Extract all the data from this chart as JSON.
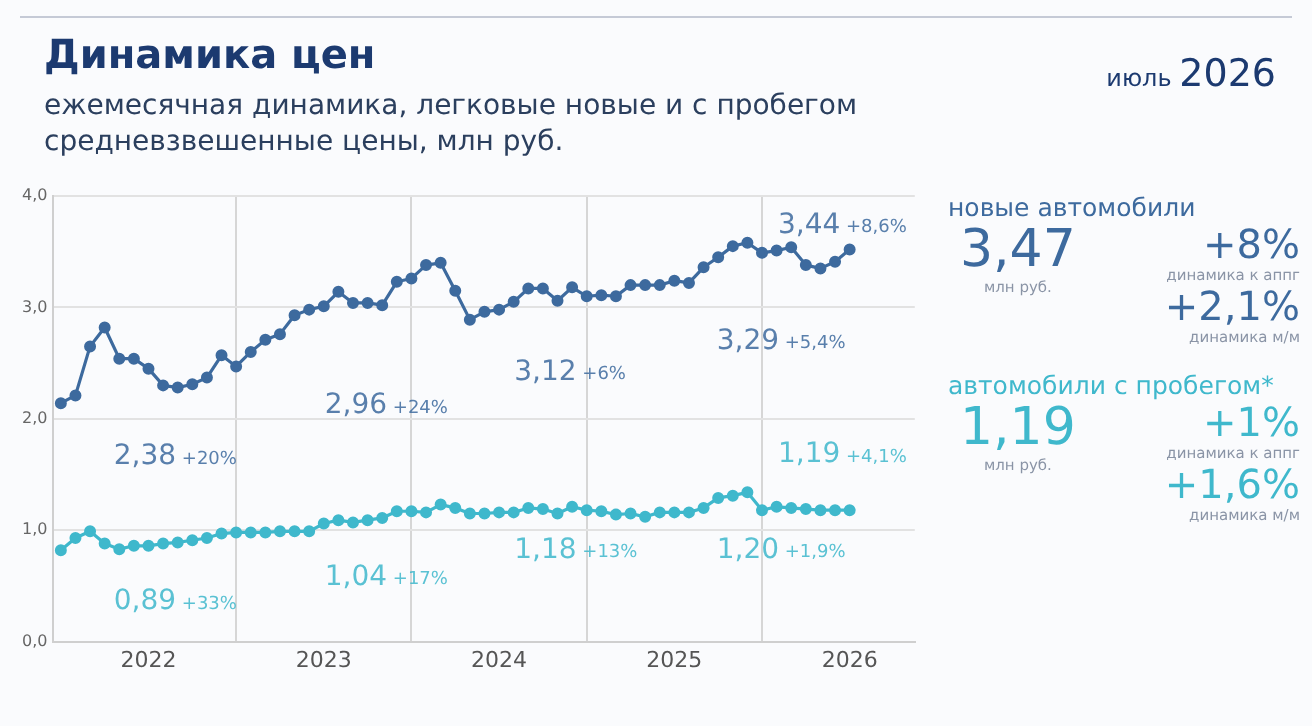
{
  "chart_data": {
    "type": "line",
    "title": "Динамика цен",
    "subtitle": "ежемесячная динамика, легковые новые и с пробегом\nсредневзвешенные цены, млн руб.",
    "x": [
      "2022-01",
      "2022-02",
      "2022-03",
      "2022-04",
      "2022-05",
      "2022-06",
      "2022-07",
      "2022-08",
      "2022-09",
      "2022-10",
      "2022-11",
      "2022-12",
      "2023-01",
      "2023-02",
      "2023-03",
      "2023-04",
      "2023-05",
      "2023-06",
      "2023-07",
      "2023-08",
      "2023-09",
      "2023-10",
      "2023-11",
      "2023-12",
      "2024-01",
      "2024-02",
      "2024-03",
      "2024-04",
      "2024-05",
      "2024-06",
      "2024-07",
      "2024-08",
      "2024-09",
      "2024-10",
      "2024-11",
      "2024-12",
      "2025-01",
      "2025-02",
      "2025-03",
      "2025-04",
      "2025-05",
      "2025-06",
      "2025-07",
      "2025-08",
      "2025-09",
      "2025-10",
      "2025-11",
      "2025-12",
      "2026-01",
      "2026-02",
      "2026-03",
      "2026-04",
      "2026-05",
      "2026-06",
      "2026-07"
    ],
    "series": [
      {
        "name": "новые автомобили",
        "color": "#3d6a9e",
        "values": [
          2.14,
          2.21,
          2.65,
          2.82,
          2.54,
          2.54,
          2.45,
          2.3,
          2.28,
          2.31,
          2.37,
          2.57,
          2.47,
          2.6,
          2.71,
          2.76,
          2.93,
          2.98,
          3.01,
          3.14,
          3.04,
          3.04,
          3.02,
          3.23,
          3.26,
          3.38,
          3.4,
          3.15,
          2.89,
          2.96,
          2.98,
          3.05,
          3.17,
          3.17,
          3.06,
          3.18,
          3.1,
          3.11,
          3.1,
          3.2,
          3.2,
          3.2,
          3.24,
          3.22,
          3.36,
          3.45,
          3.55,
          3.58,
          3.49,
          3.51,
          3.54,
          3.38,
          3.35,
          3.41,
          3.52
        ]
      },
      {
        "name": "автомобили с пробегом*",
        "color": "#3fb8cc",
        "values": [
          0.82,
          0.93,
          0.99,
          0.88,
          0.83,
          0.86,
          0.86,
          0.88,
          0.89,
          0.91,
          0.93,
          0.97,
          0.98,
          0.98,
          0.98,
          0.99,
          0.99,
          0.99,
          1.06,
          1.09,
          1.07,
          1.09,
          1.11,
          1.17,
          1.17,
          1.16,
          1.23,
          1.2,
          1.15,
          1.15,
          1.16,
          1.16,
          1.2,
          1.19,
          1.15,
          1.21,
          1.18,
          1.17,
          1.14,
          1.15,
          1.12,
          1.16,
          1.16,
          1.16,
          1.2,
          1.29,
          1.31,
          1.34,
          1.18,
          1.21,
          1.2,
          1.19,
          1.18,
          1.18,
          1.18
        ]
      }
    ],
    "xlim": [
      "2021-12-16",
      "2026-11-15"
    ],
    "xticks": [
      {
        "value": "2022-07-01",
        "label": "2022"
      },
      {
        "value": "2023-01-01",
        "label": null
      },
      {
        "value": "2023-07-01",
        "label": "2023"
      },
      {
        "value": "2024-01-01",
        "label": null
      },
      {
        "value": "2024-07-01",
        "label": "2024"
      },
      {
        "value": "2025-01-01",
        "label": null
      },
      {
        "value": "2025-07-01",
        "label": "2025"
      },
      {
        "value": "2026-01-01",
        "label": null
      },
      {
        "value": "2026-07-01",
        "label": "2026"
      }
    ],
    "ylim": [
      0,
      4
    ],
    "yticks": [
      {
        "value": 0,
        "label": "0,0"
      },
      {
        "value": 1,
        "label": "1,0"
      },
      {
        "value": 2,
        "label": "2,0"
      },
      {
        "value": 3,
        "label": "3,0"
      },
      {
        "value": 4,
        "label": "4,0"
      }
    ],
    "grid": true,
    "marker": "circle",
    "line_style": "solid",
    "legend": "right",
    "annotations": [
      "2,38 +20%",
      "2,96 +24%",
      "3,12 +6%",
      "3,29 +5,4%",
      "3,44 +8,6%",
      "0,89 +33%",
      "1,04 +17%",
      "1,18 +13%",
      "1,20 +1,9%",
      "1,19 +4,1%",
      "июль 2026",
      "3,47",
      "млн руб.",
      "+8%",
      "динамика к аппг",
      "+2,1%",
      "динамика м/м",
      "1,19",
      "млн руб.",
      "+1%",
      "динамика к аппг",
      "+1,6%",
      "динамика м/м"
    ]
  }
}
